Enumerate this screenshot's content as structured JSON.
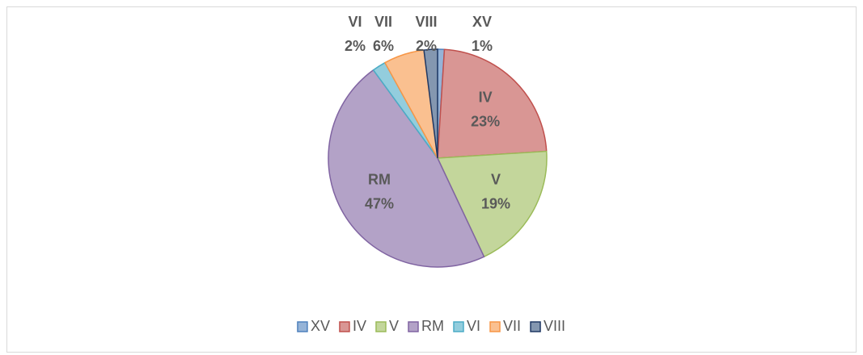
{
  "chart_data": {
    "type": "pie",
    "categories": [
      "XV",
      "IV",
      "V",
      "RM",
      "VI",
      "VII",
      "VIII"
    ],
    "values": [
      1,
      23,
      19,
      47,
      2,
      6,
      2
    ],
    "value_labels": [
      "1%",
      "23%",
      "19%",
      "47%",
      "2%",
      "6%",
      "2%"
    ],
    "colors": [
      "#95b3d7",
      "#d99694",
      "#c3d69b",
      "#b3a2c7",
      "#93cddd",
      "#fac090",
      "#8497b0"
    ],
    "edge_colors": [
      "#4f81bd",
      "#c0504d",
      "#9bbb59",
      "#8064a2",
      "#4bacc6",
      "#f79646",
      "#1f3864"
    ],
    "legend": "bottom"
  }
}
